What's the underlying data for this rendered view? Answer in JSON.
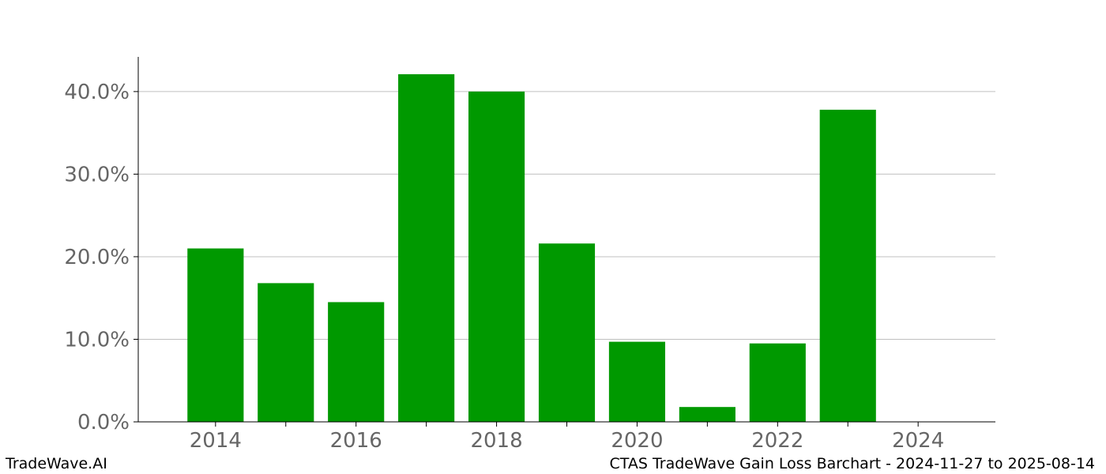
{
  "footer": {
    "brand": "TradeWave.AI",
    "caption": "CTAS TradeWave Gain Loss Barchart - 2024-11-27 to 2025-08-14"
  },
  "colors": {
    "bar": "#009900",
    "grid": "#c0c0c0",
    "tick_label": "#666666",
    "axis": "#000000"
  },
  "chart_data": {
    "type": "bar",
    "title": "",
    "xlabel": "",
    "ylabel": "",
    "x": [
      2014,
      2015,
      2016,
      2017,
      2018,
      2019,
      2020,
      2021,
      2022,
      2023
    ],
    "values": [
      21.0,
      16.8,
      14.5,
      42.1,
      40.0,
      21.6,
      9.7,
      1.8,
      9.5,
      37.8
    ],
    "ylim": [
      0,
      44.2
    ],
    "xlim": [
      2012.9,
      2025.1
    ],
    "yticks": [
      0,
      10,
      20,
      30,
      40
    ],
    "ytick_labels": [
      "0.0%",
      "10.0%",
      "20.0%",
      "30.0%",
      "40.0%"
    ],
    "xticks_labeled": [
      2014,
      2016,
      2018,
      2020,
      2022,
      2024
    ],
    "xticks_minor": [
      2015,
      2017,
      2019,
      2021,
      2023
    ],
    "grid": "y",
    "legend": "none"
  }
}
